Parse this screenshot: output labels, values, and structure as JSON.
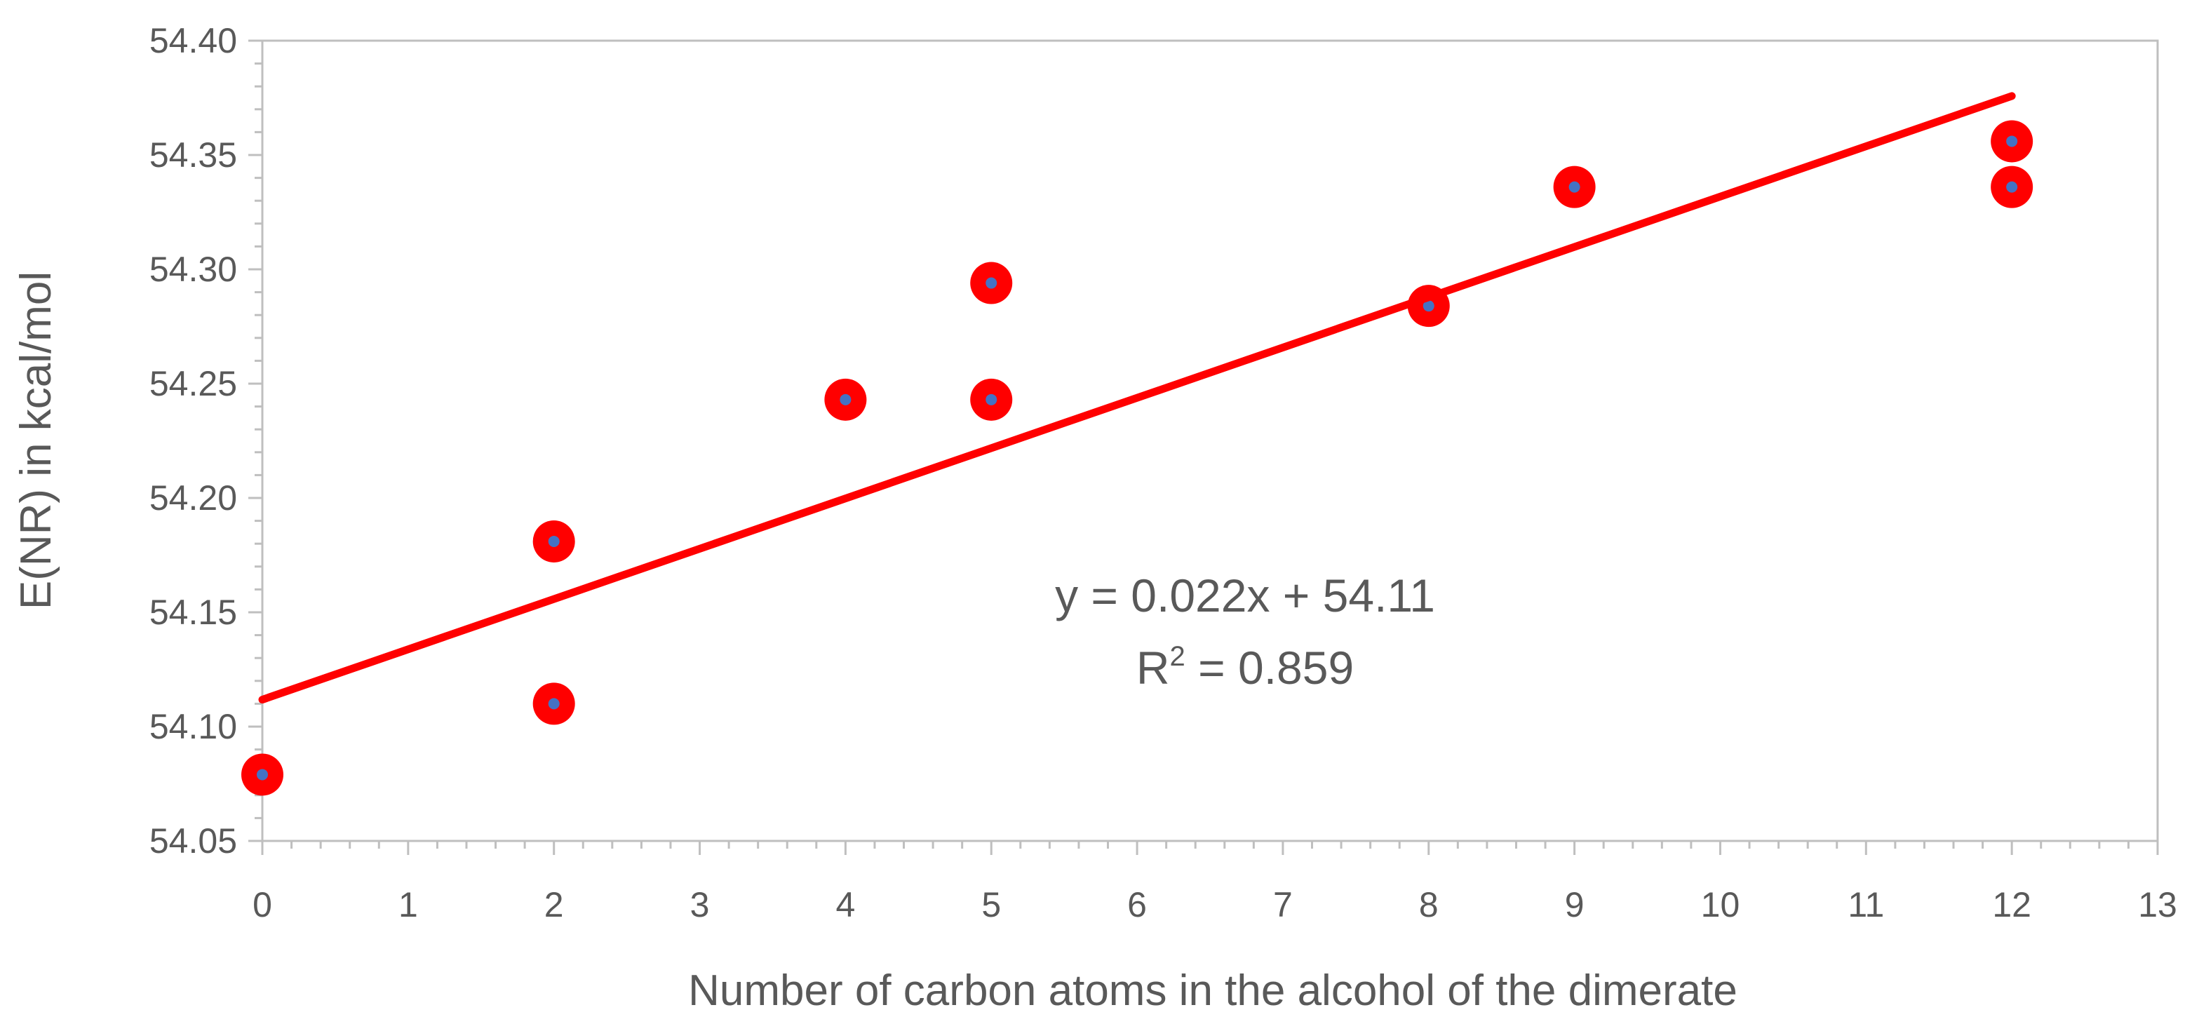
{
  "chart_data": {
    "type": "scatter",
    "xlabel": "Number of carbon atoms in the alcohol of the dimerate",
    "ylabel": "E(NR) in kcal/mol",
    "xlim": [
      0,
      13
    ],
    "ylim": [
      54.05,
      54.4
    ],
    "x_ticks": [
      "0",
      "1",
      "2",
      "3",
      "4",
      "5",
      "6",
      "7",
      "8",
      "9",
      "10",
      "11",
      "12",
      "13"
    ],
    "y_ticks": [
      "54.05",
      "54.10",
      "54.15",
      "54.20",
      "54.25",
      "54.30",
      "54.35",
      "54.40"
    ],
    "grid": false,
    "points": [
      {
        "x": 0,
        "y": 54.079
      },
      {
        "x": 2,
        "y": 54.11
      },
      {
        "x": 2,
        "y": 54.181
      },
      {
        "x": 4,
        "y": 54.243
      },
      {
        "x": 5,
        "y": 54.243
      },
      {
        "x": 5,
        "y": 54.294
      },
      {
        "x": 8,
        "y": 54.284
      },
      {
        "x": 9,
        "y": 54.336
      },
      {
        "x": 12,
        "y": 54.336
      },
      {
        "x": 12,
        "y": 54.356
      }
    ],
    "trendline": {
      "slope": 0.022,
      "intercept": 54.1118,
      "x_range": [
        0,
        12
      ]
    },
    "annotation": {
      "equation": "y = 0.022x + 54.11",
      "r2_prefix": "R",
      "r2_sup": "2",
      "r2_suffix": " = 0.859"
    },
    "colors": {
      "marker_outer": "#ff0000",
      "marker_inner": "#4472c4",
      "trendline": "#ff0000",
      "axis": "#bfbfbf",
      "text": "#595959"
    }
  }
}
